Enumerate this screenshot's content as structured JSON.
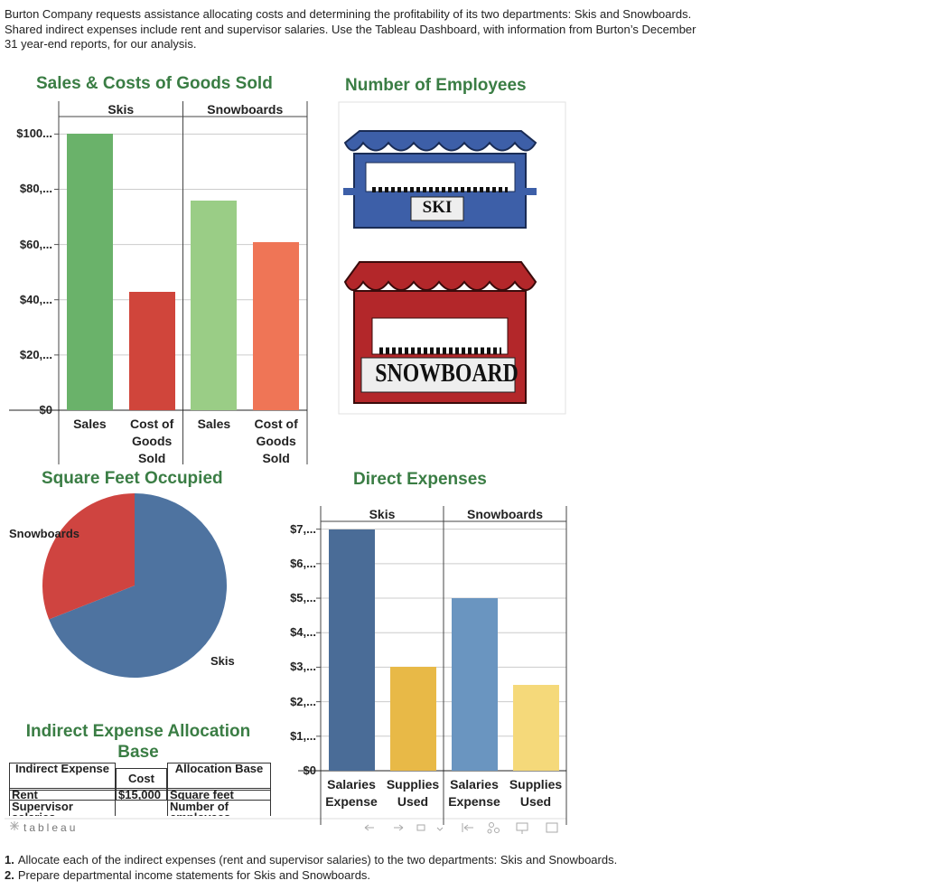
{
  "intro": "Burton Company requests assistance allocating costs and determining the profitability of its two departments: Skis and Snowboards. Shared indirect expenses include rent and supervisor salaries. Use the Tableau Dashboard, with information from Burton’s December 31 year-end reports, for our analysis.",
  "dashboard": {
    "sales_chart": {
      "type": "bar",
      "title": "Sales & Costs of Goods Sold",
      "groups": [
        "Skis",
        "Snowboards"
      ],
      "categories": [
        "Sales",
        "Cost of Goods Sold",
        "Sales",
        "Cost of Goods Sold"
      ],
      "values": [
        100000,
        43000,
        76000,
        61000
      ],
      "colors": [
        "#6ab26a",
        "#d0453b",
        "#9acd86",
        "#ef7556"
      ],
      "ylim": [
        0,
        106000
      ],
      "yticks": [
        {
          "value": 0,
          "label": "$0"
        },
        {
          "value": 20000,
          "label": "$20,..."
        },
        {
          "value": 40000,
          "label": "$40,..."
        },
        {
          "value": 60000,
          "label": "$60,..."
        },
        {
          "value": 80000,
          "label": "$80,..."
        },
        {
          "value": 100000,
          "label": "$100..."
        }
      ],
      "grid": true
    },
    "employees": {
      "title": "Number of Employees",
      "signs": [
        "SKI",
        "SNOWBOARD"
      ]
    },
    "square_feet_chart": {
      "type": "pie",
      "title": "Square Feet Occupied",
      "categories": [
        "Skis",
        "Snowboards"
      ],
      "values": [
        69,
        31
      ],
      "colors": [
        "#4e73a0",
        "#cf4440"
      ]
    },
    "direct_chart": {
      "type": "bar",
      "title": "Direct Expenses",
      "groups": [
        "Skis",
        "Snowboards"
      ],
      "categories": [
        "Salaries Expense",
        "Supplies Used",
        "Salaries Expense",
        "Supplies Used"
      ],
      "values": [
        7000,
        3000,
        5000,
        2500
      ],
      "colors": [
        "#4a6c97",
        "#e8b947",
        "#6a95c0",
        "#f5d97a"
      ],
      "ylim": [
        0,
        7200
      ],
      "yticks": [
        {
          "value": 0,
          "label": "$0"
        },
        {
          "value": 1000,
          "label": "$1,..."
        },
        {
          "value": 2000,
          "label": "$2,..."
        },
        {
          "value": 3000,
          "label": "$3,..."
        },
        {
          "value": 4000,
          "label": "$4,..."
        },
        {
          "value": 5000,
          "label": "$5,..."
        },
        {
          "value": 6000,
          "label": "$6,..."
        },
        {
          "value": 7000,
          "label": "$7,..."
        }
      ],
      "grid": true
    },
    "indirect_table": {
      "title": "Indirect Expense Allocation Base",
      "header": [
        "Indirect Expense",
        "Cost",
        "Allocation Base"
      ],
      "rows": [
        {
          "expense": "Rent",
          "cost": "$15,000",
          "base": "Square feet"
        },
        {
          "expense": "Supervisor salaries",
          "base": "Number of employees"
        }
      ]
    },
    "toolbar": {
      "logo": "tableau"
    }
  },
  "questions": [
    {
      "number": "1.",
      "text": "Allocate each of the indirect expenses (rent and supervisor salaries) to the two departments: Skis and Snowboards."
    },
    {
      "number": "2.",
      "text": "Prepare departmental income statements for Skis and Snowboards."
    }
  ]
}
